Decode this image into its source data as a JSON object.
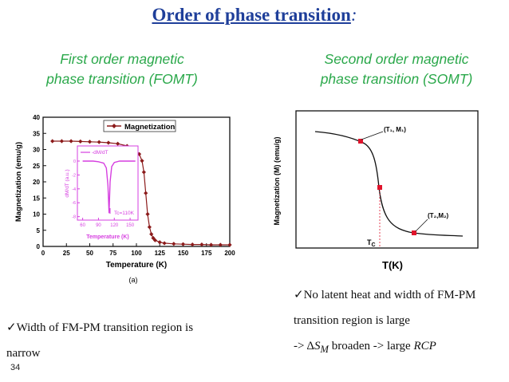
{
  "slide": {
    "title": "Order of phase transition",
    "title_colon": ":",
    "page_number": "34"
  },
  "left_panel": {
    "heading_line1": "First order  magnetic",
    "heading_line2": "phase transition (FOMT)",
    "figure_caption": "(a)",
    "note_line1": "✓Width of FM-PM transition region is",
    "note_line2": "narrow"
  },
  "right_panel": {
    "heading_line1": "Second order  magnetic",
    "heading_line2": "phase transition (SOMT)",
    "note_line1": "✓No latent heat and width of FM-PM",
    "note_line2": "transition region is large",
    "note_line3_prefix": "-> Δ",
    "note_line3_symbol": "S",
    "note_line3_sub": "M",
    "note_line3_mid": " broaden -> large ",
    "note_line3_rcp": "RCP"
  },
  "chart_data": [
    {
      "type": "line",
      "xlabel": "Temperature (K)",
      "ylabel": "Magnetization (emu/g)",
      "xlim": [
        0,
        200
      ],
      "ylim": [
        0,
        40
      ],
      "xticks": [
        0,
        25,
        50,
        75,
        100,
        125,
        150,
        175,
        200
      ],
      "yticks": [
        0,
        5,
        10,
        15,
        20,
        25,
        30,
        35,
        40
      ],
      "legend": "top-right",
      "series": [
        {
          "name": "Magnetization",
          "color": "#8b1a1a",
          "x": [
            10,
            20,
            30,
            40,
            50,
            60,
            70,
            80,
            90,
            95,
            100,
            103,
            106,
            108,
            110,
            112,
            114,
            116,
            118,
            120,
            125,
            130,
            140,
            150,
            160,
            170,
            180,
            190,
            200
          ],
          "y": [
            32.6,
            32.6,
            32.6,
            32.5,
            32.4,
            32.3,
            32.1,
            31.8,
            31.1,
            30.5,
            29.6,
            28.6,
            26.5,
            23.0,
            16.5,
            10.0,
            6.0,
            3.8,
            2.6,
            1.9,
            1.3,
            1.0,
            0.8,
            0.7,
            0.6,
            0.6,
            0.5,
            0.5,
            0.5
          ]
        }
      ],
      "inset": {
        "ylabel": "dM/dT (a.u.)",
        "xlabel": "Temperature (K)",
        "xticks": [
          60,
          90,
          120,
          150
        ],
        "yticks": [
          0,
          -2,
          -4,
          -6,
          -8
        ],
        "legend": "-dM/dT",
        "annotation": "Tc=110K",
        "color": "#d63fe0",
        "x": [
          60,
          70,
          80,
          90,
          100,
          105,
          108,
          110,
          112,
          115,
          120,
          130,
          140,
          150,
          160
        ],
        "y": [
          0,
          0,
          0,
          -0.1,
          -0.3,
          -1.0,
          -3.5,
          -7.5,
          -3.0,
          -0.8,
          -0.2,
          0,
          0,
          0,
          0
        ]
      }
    },
    {
      "type": "line",
      "xlabel": "T(K)",
      "ylabel": "Magnetization (M) (emu/g)",
      "annotations": [
        "(T₁, M₁)",
        "(T₂,M₂)",
        "T_C"
      ],
      "series": [
        {
          "color": "#111111",
          "points_marked": 3,
          "marker_color": "#e0142c"
        }
      ]
    }
  ]
}
